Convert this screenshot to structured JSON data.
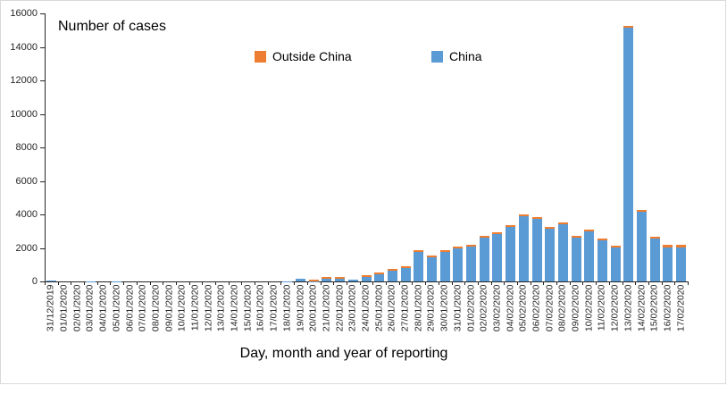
{
  "chart_data": {
    "type": "bar",
    "stacked": true,
    "title": "Number of cases",
    "xlabel": "Day, month and year of reporting",
    "ylabel": "",
    "ylim": [
      0,
      16000
    ],
    "yticks": [
      0,
      2000,
      4000,
      6000,
      8000,
      10000,
      12000,
      14000,
      16000
    ],
    "grid": false,
    "legend_position": "top-center",
    "legend_order": [
      "Outside China",
      "China"
    ],
    "categories": [
      "31/12/2019",
      "01/01/2020",
      "02/01/2020",
      "03/01/2020",
      "04/01/2020",
      "05/01/2020",
      "06/01/2020",
      "07/01/2020",
      "08/01/2020",
      "09/01/2020",
      "10/01/2020",
      "11/01/2020",
      "12/01/2020",
      "13/01/2020",
      "14/01/2020",
      "15/01/2020",
      "16/01/2020",
      "17/01/2020",
      "18/01/2020",
      "19/01/2020",
      "20/01/2020",
      "21/01/2020",
      "22/01/2020",
      "23/01/2020",
      "24/01/2020",
      "25/01/2020",
      "26/01/2020",
      "27/01/2020",
      "28/01/2020",
      "29/01/2020",
      "30/01/2020",
      "31/01/2020",
      "01/02/2020",
      "02/02/2020",
      "03/02/2020",
      "04/02/2020",
      "05/02/2020",
      "06/02/2020",
      "07/02/2020",
      "08/02/2020",
      "09/02/2020",
      "10/02/2020",
      "11/02/2020",
      "12/02/2020",
      "13/02/2020",
      "14/02/2020",
      "15/02/2020",
      "16/02/2020",
      "17/02/2020"
    ],
    "series": [
      {
        "name": "China",
        "color": "#5B9BD5",
        "values": [
          27,
          0,
          0,
          17,
          0,
          15,
          0,
          0,
          0,
          0,
          0,
          0,
          0,
          0,
          0,
          0,
          0,
          4,
          17,
          136,
          19,
          151,
          140,
          97,
          259,
          441,
          665,
          787,
          1753,
          1466,
          1740,
          1980,
          2099,
          2590,
          2812,
          3237,
          3872,
          3727,
          3160,
          3418,
          2607,
          2974,
          2467,
          2015,
          15141,
          4156,
          2538,
          2007,
          2051
        ]
      },
      {
        "name": "Outside China",
        "color": "#ED7D31",
        "values": [
          0,
          0,
          0,
          0,
          0,
          0,
          0,
          0,
          0,
          0,
          0,
          0,
          0,
          1,
          1,
          1,
          1,
          2,
          2,
          1,
          4,
          4,
          5,
          1,
          8,
          12,
          15,
          8,
          14,
          6,
          16,
          26,
          27,
          24,
          19,
          23,
          28,
          27,
          34,
          22,
          37,
          32,
          53,
          5,
          46,
          57,
          83,
          162,
          119
        ]
      }
    ]
  },
  "colors": {
    "axis": "#262626",
    "tick_text": "#262626",
    "title_text": "#000000",
    "frame_border": "#D9D9D9",
    "background": "#FFFFFF"
  }
}
